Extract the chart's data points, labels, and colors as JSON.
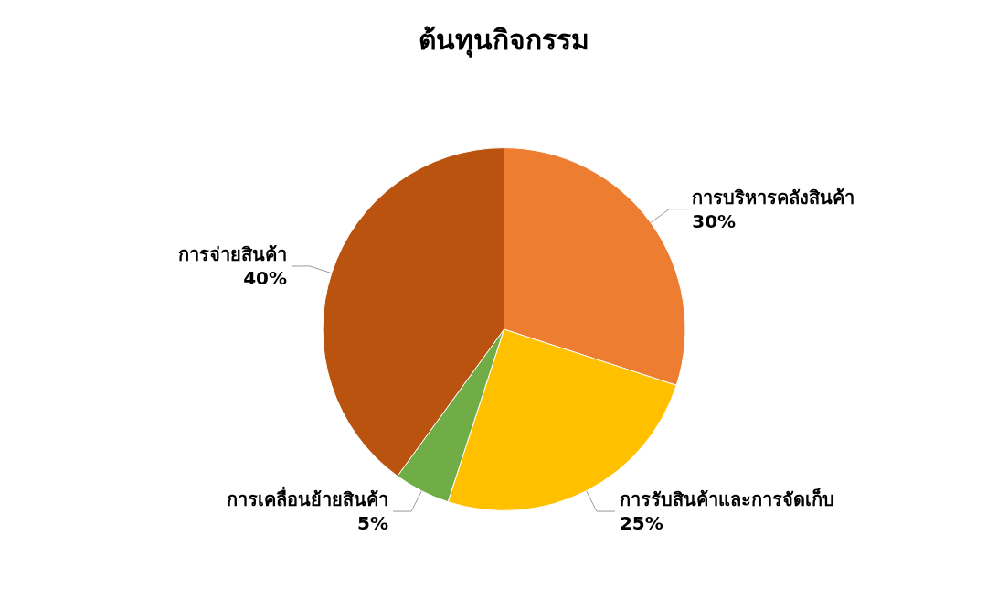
{
  "chart_data": {
    "type": "pie",
    "title": "ต้นทุนกิจกรรม",
    "categories": [
      "การบริหารคลังสินค้า",
      "การรับสินค้าและการจัดเก็บ",
      "การเคลื่อนย้ายสินค้า",
      "การจ่ายสินค้า"
    ],
    "values": [
      30,
      25,
      5,
      40
    ],
    "value_labels": [
      "30%",
      "25%",
      "5%",
      "40%"
    ],
    "colors": [
      "#ed7d31",
      "#ffc000",
      "#70ad47",
      "#b9530f"
    ]
  }
}
